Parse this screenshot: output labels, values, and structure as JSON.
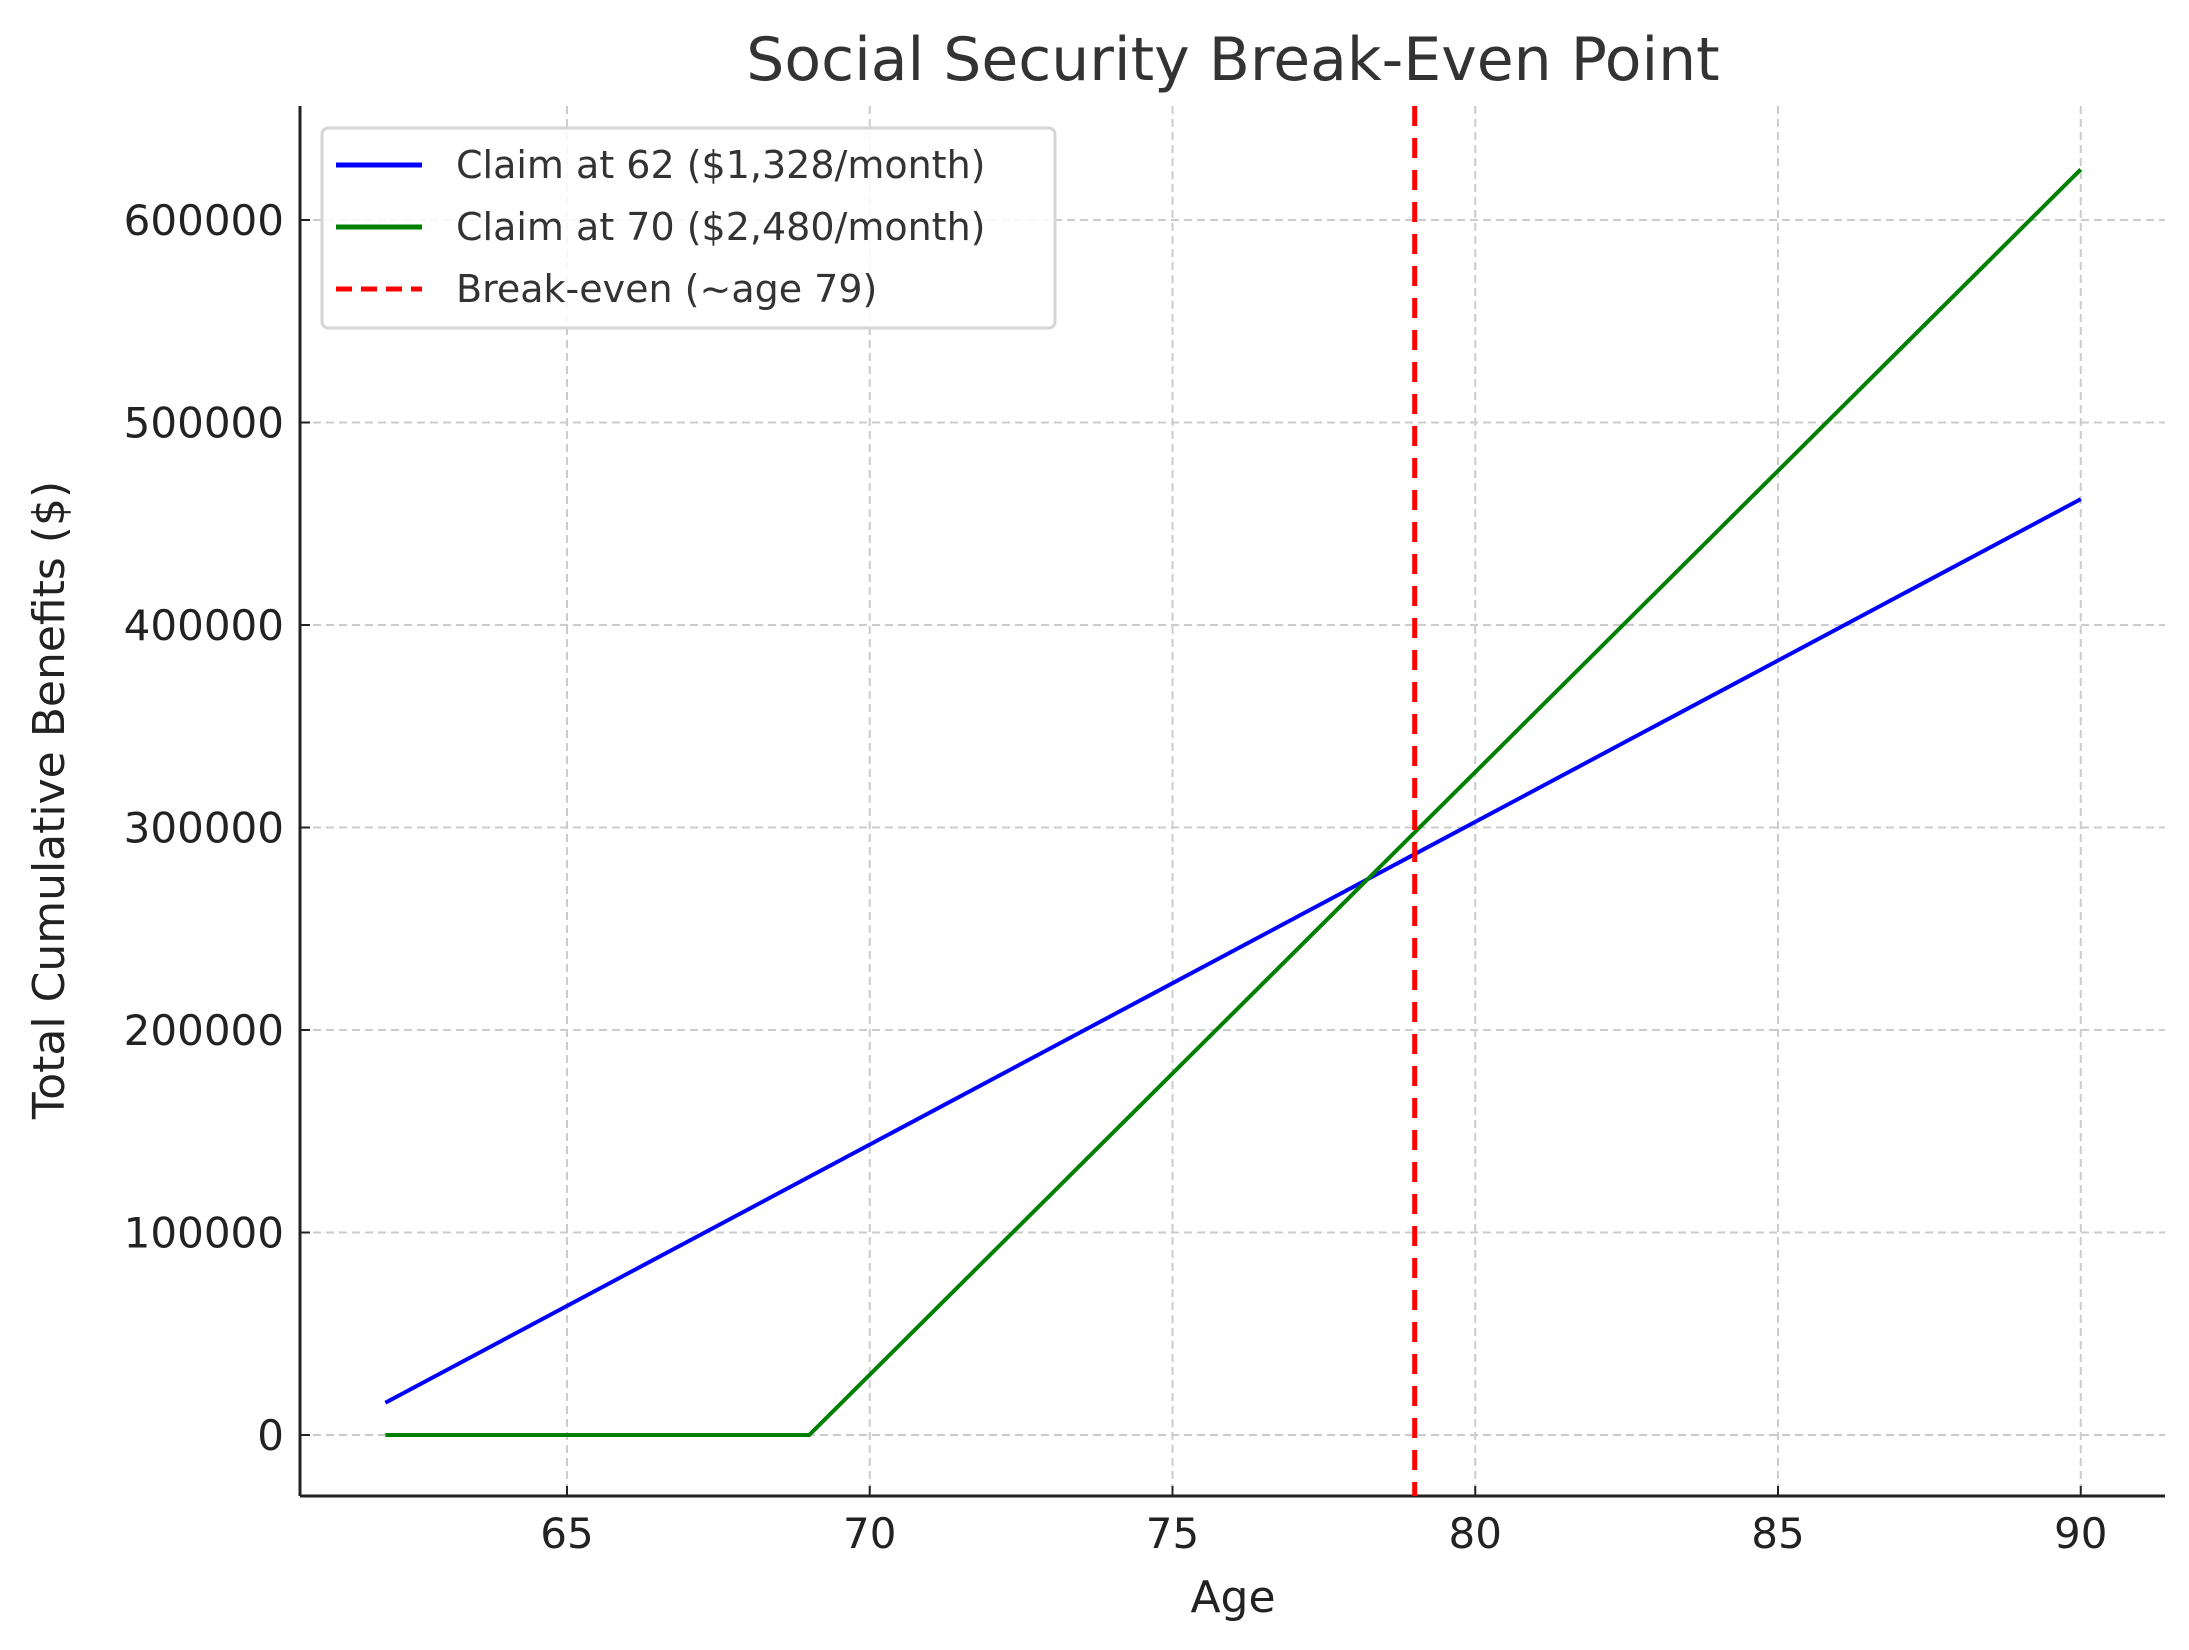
{
  "chart_data": {
    "type": "line",
    "title": "Social Security Break-Even Point",
    "xlabel": "Age",
    "ylabel": "Total Cumulative Benefits ($)",
    "xlim": [
      61.3,
      91.4
    ],
    "ylim": [
      -30000,
      658000
    ],
    "xticks": [
      "65",
      "70",
      "75",
      "80",
      "85",
      "90"
    ],
    "yticks": [
      "0",
      "100000",
      "200000",
      "300000",
      "400000",
      "500000",
      "600000"
    ],
    "grid": true,
    "legend_position": "upper left",
    "series": [
      {
        "name": "Claim at 62 ($1,328/month)",
        "color": "#0000ff",
        "x": [
          62,
          90
        ],
        "values": [
          15936,
          462144
        ]
      },
      {
        "name": "Claim at 70 ($2,480/month)",
        "color": "#008000",
        "x": [
          62,
          69,
          90
        ],
        "values": [
          0,
          0,
          624960
        ]
      },
      {
        "name": "Break-even (~age 79)",
        "color": "#ff0000",
        "style": "dashed",
        "x": [
          79,
          79
        ],
        "vertical_line": 79
      }
    ]
  }
}
